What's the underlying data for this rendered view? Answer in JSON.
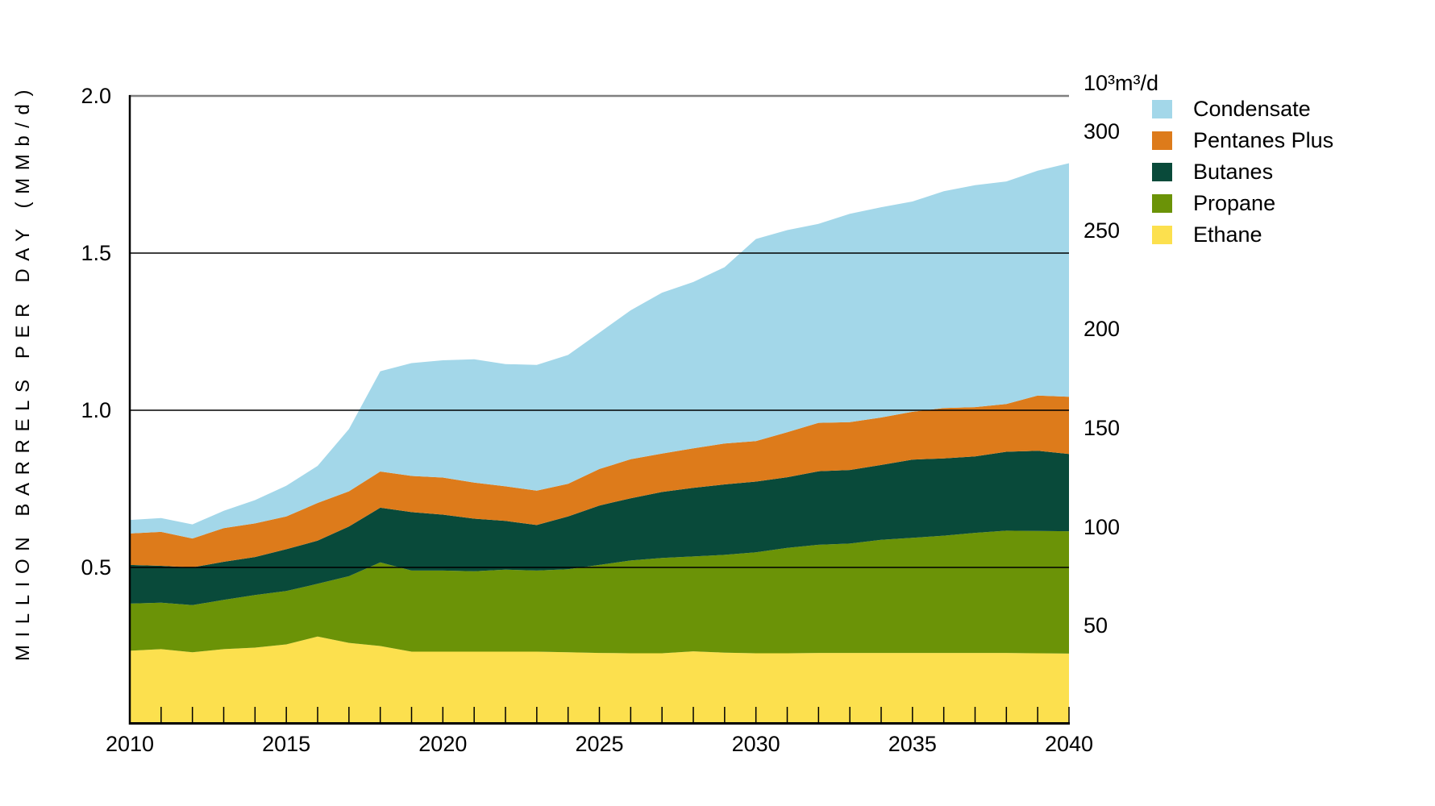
{
  "y_axis_left": {
    "label": "MILLION BARRELS PER DAY (MMb/d)",
    "tick_labels": [
      "2.0",
      "1.5",
      "1.0",
      "0.5"
    ],
    "tick_values": [
      2.0,
      1.5,
      1.0,
      0.5
    ]
  },
  "y_axis_right": {
    "unit_label": "10³m³/d",
    "tick_labels": [
      "300",
      "250",
      "200",
      "150",
      "100",
      "50"
    ],
    "tick_values": [
      300,
      250,
      200,
      150,
      100,
      50
    ],
    "units_per_mmbd": 158.99
  },
  "x_axis": {
    "tick_label_values": [
      2010,
      2015,
      2020,
      2025,
      2030,
      2035,
      2040
    ],
    "tick_labels": [
      "2010",
      "2015",
      "2020",
      "2025",
      "2030",
      "2035",
      "2040"
    ],
    "minor_tick_start": 2010,
    "minor_tick_end": 2040
  },
  "legend": {
    "items": [
      {
        "label": "Condensate",
        "color": "#a3d7e9"
      },
      {
        "label": "Pentanes Plus",
        "color": "#dd7b1b"
      },
      {
        "label": "Butanes",
        "color": "#094a3a"
      },
      {
        "label": "Propane",
        "color": "#6b9307"
      },
      {
        "label": "Ethane",
        "color": "#fce04e"
      }
    ]
  },
  "colors": {
    "grid_top": "#7f7f7f",
    "grid": "#000000",
    "axis": "#000000",
    "background": "#ffffff"
  },
  "chart_data": {
    "type": "area",
    "stacked": true,
    "title": "",
    "xlabel": "",
    "ylabel": "MILLION BARRELS PER DAY (MMb/d)",
    "y2label": "10³m³/d",
    "xlim": [
      2010,
      2040
    ],
    "ylim": [
      0,
      2.0
    ],
    "gridline_values": [
      0.5,
      1.0,
      1.5,
      2.0
    ],
    "legend_position": "top-right",
    "x": [
      2010,
      2011,
      2012,
      2013,
      2014,
      2015,
      2016,
      2017,
      2018,
      2019,
      2020,
      2021,
      2022,
      2023,
      2024,
      2025,
      2026,
      2027,
      2028,
      2029,
      2030,
      2031,
      2032,
      2033,
      2034,
      2035,
      2036,
      2037,
      2038,
      2039,
      2040
    ],
    "series": [
      {
        "name": "Ethane",
        "color": "#fce04e",
        "values": [
          0.235,
          0.24,
          0.23,
          0.24,
          0.245,
          0.255,
          0.28,
          0.26,
          0.25,
          0.232,
          0.232,
          0.232,
          0.232,
          0.232,
          0.23,
          0.228,
          0.227,
          0.227,
          0.233,
          0.229,
          0.227,
          0.227,
          0.228,
          0.228,
          0.228,
          0.228,
          0.228,
          0.228,
          0.228,
          0.227,
          0.226
        ]
      },
      {
        "name": "Propane",
        "color": "#6b9307",
        "values": [
          0.15,
          0.148,
          0.15,
          0.157,
          0.167,
          0.17,
          0.168,
          0.212,
          0.266,
          0.258,
          0.258,
          0.256,
          0.261,
          0.258,
          0.264,
          0.28,
          0.295,
          0.303,
          0.302,
          0.311,
          0.321,
          0.335,
          0.344,
          0.348,
          0.36,
          0.366,
          0.373,
          0.382,
          0.389,
          0.389,
          0.389
        ]
      },
      {
        "name": "Butanes",
        "color": "#094a3a",
        "values": [
          0.123,
          0.117,
          0.12,
          0.121,
          0.121,
          0.133,
          0.137,
          0.158,
          0.174,
          0.186,
          0.178,
          0.167,
          0.155,
          0.145,
          0.168,
          0.189,
          0.198,
          0.21,
          0.218,
          0.224,
          0.225,
          0.225,
          0.234,
          0.234,
          0.238,
          0.249,
          0.246,
          0.243,
          0.251,
          0.255,
          0.246
        ]
      },
      {
        "name": "Pentanes Plus",
        "color": "#dd7b1b",
        "values": [
          0.1,
          0.108,
          0.092,
          0.107,
          0.107,
          0.104,
          0.12,
          0.112,
          0.115,
          0.115,
          0.118,
          0.115,
          0.11,
          0.109,
          0.104,
          0.116,
          0.124,
          0.122,
          0.126,
          0.13,
          0.129,
          0.143,
          0.154,
          0.152,
          0.151,
          0.152,
          0.16,
          0.157,
          0.152,
          0.176,
          0.182
        ]
      },
      {
        "name": "Condensate",
        "color": "#a3d7e9",
        "values": [
          0.043,
          0.044,
          0.045,
          0.055,
          0.074,
          0.098,
          0.118,
          0.198,
          0.319,
          0.359,
          0.373,
          0.392,
          0.389,
          0.4,
          0.41,
          0.434,
          0.474,
          0.512,
          0.529,
          0.561,
          0.643,
          0.643,
          0.633,
          0.663,
          0.669,
          0.669,
          0.69,
          0.706,
          0.708,
          0.715,
          0.743
        ]
      }
    ]
  }
}
